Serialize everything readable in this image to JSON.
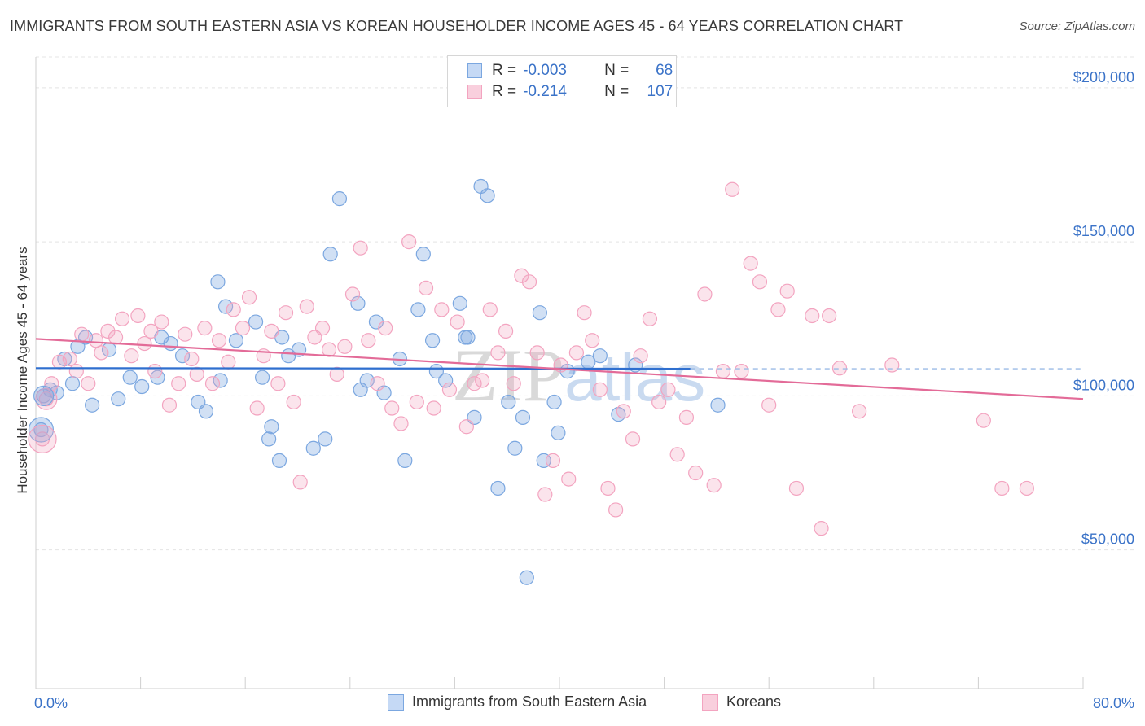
{
  "title": "IMMIGRANTS FROM SOUTH EASTERN ASIA VS KOREAN HOUSEHOLDER INCOME AGES 45 - 64 YEARS CORRELATION CHART",
  "source": "Source: ZipAtlas.com",
  "watermark": {
    "zip": "ZIP",
    "atlas": "atlas"
  },
  "legend": {
    "r_label": "R =",
    "n_label": "N =",
    "rows": [
      {
        "r": "-0.003",
        "n": "68"
      },
      {
        "r": "-0.214",
        "n": "107"
      }
    ]
  },
  "chart_data": {
    "type": "scatter",
    "title": "IMMIGRANTS FROM SOUTH EASTERN ASIA VS KOREAN HOUSEHOLDER INCOME AGES 45 - 64 YEARS CORRELATION CHART",
    "xlabel": "",
    "ylabel": "Householder Income Ages 45 - 64 years",
    "xlim": [
      0,
      80
    ],
    "ylim": [
      5000,
      210000
    ],
    "x_tick_labels": [
      "0.0%",
      "80.0%"
    ],
    "y_ticks": [
      50000,
      100000,
      150000,
      200000
    ],
    "y_tick_labels": [
      "$50,000",
      "$100,000",
      "$150,000",
      "$200,000"
    ],
    "grid": true,
    "legend_position": "top-center",
    "series": [
      {
        "name": "Immigrants from South Eastern Asia",
        "color": "#7ba7e0",
        "trend": {
          "x0": 0,
          "y0": 109000,
          "x1": 50,
          "y1": 108800
        },
        "points": [
          [
            0.6,
            100000
          ],
          [
            1.1,
            102000
          ],
          [
            1.6,
            101000
          ],
          [
            2.2,
            112000
          ],
          [
            3.2,
            116000
          ],
          [
            3.8,
            119000
          ],
          [
            2.8,
            104000
          ],
          [
            4.3,
            97000
          ],
          [
            5.6,
            115000
          ],
          [
            7.2,
            106000
          ],
          [
            8.1,
            103000
          ],
          [
            9.3,
            106000
          ],
          [
            10.3,
            117000
          ],
          [
            11.2,
            113000
          ],
          [
            12.4,
            98000
          ],
          [
            13.0,
            95000
          ],
          [
            13.9,
            137000
          ],
          [
            14.5,
            129000
          ],
          [
            15.3,
            118000
          ],
          [
            14.1,
            105000
          ],
          [
            16.8,
            124000
          ],
          [
            17.3,
            106000
          ],
          [
            17.8,
            86000
          ],
          [
            18.8,
            119000
          ],
          [
            19.3,
            113000
          ],
          [
            20.1,
            115000
          ],
          [
            18.6,
            79000
          ],
          [
            18.0,
            90000
          ],
          [
            21.2,
            83000
          ],
          [
            22.1,
            86000
          ],
          [
            22.5,
            146000
          ],
          [
            23.2,
            164000
          ],
          [
            24.6,
            130000
          ],
          [
            24.8,
            102000
          ],
          [
            25.3,
            105000
          ],
          [
            26.0,
            124000
          ],
          [
            26.6,
            101000
          ],
          [
            27.8,
            112000
          ],
          [
            28.2,
            79000
          ],
          [
            29.2,
            128000
          ],
          [
            29.6,
            146000
          ],
          [
            30.3,
            118000
          ],
          [
            30.6,
            108000
          ],
          [
            31.3,
            105000
          ],
          [
            32.4,
            130000
          ],
          [
            32.8,
            119000
          ],
          [
            33.0,
            119000
          ],
          [
            33.5,
            93000
          ],
          [
            34.0,
            168000
          ],
          [
            34.5,
            165000
          ],
          [
            35.3,
            70000
          ],
          [
            36.1,
            98000
          ],
          [
            36.6,
            83000
          ],
          [
            37.2,
            93000
          ],
          [
            37.5,
            41000
          ],
          [
            38.5,
            127000
          ],
          [
            38.8,
            79000
          ],
          [
            39.6,
            98000
          ],
          [
            39.9,
            88000
          ],
          [
            40.6,
            108000
          ],
          [
            42.2,
            111000
          ],
          [
            43.1,
            113000
          ],
          [
            44.5,
            94000
          ],
          [
            45.8,
            110000
          ],
          [
            52.1,
            97000
          ],
          [
            0.4,
            89000
          ],
          [
            6.3,
            99000
          ],
          [
            9.6,
            119000
          ]
        ]
      },
      {
        "name": "Koreans",
        "color": "#f3a4c0",
        "trend": {
          "x0": 0,
          "y0": 118500,
          "x1": 80,
          "y1": 99000
        },
        "points": [
          [
            0.5,
            86000
          ],
          [
            0.8,
            99000
          ],
          [
            1.2,
            104000
          ],
          [
            1.8,
            111000
          ],
          [
            2.6,
            112000
          ],
          [
            3.1,
            108000
          ],
          [
            3.5,
            120000
          ],
          [
            4.0,
            104000
          ],
          [
            4.6,
            118000
          ],
          [
            5.0,
            114000
          ],
          [
            5.5,
            121000
          ],
          [
            6.1,
            119000
          ],
          [
            6.6,
            125000
          ],
          [
            7.3,
            113000
          ],
          [
            7.8,
            126000
          ],
          [
            8.3,
            117000
          ],
          [
            8.8,
            121000
          ],
          [
            9.1,
            108000
          ],
          [
            9.6,
            124000
          ],
          [
            10.2,
            97000
          ],
          [
            10.9,
            104000
          ],
          [
            11.4,
            120000
          ],
          [
            11.9,
            112000
          ],
          [
            12.3,
            107000
          ],
          [
            12.9,
            122000
          ],
          [
            13.5,
            104000
          ],
          [
            14.0,
            118000
          ],
          [
            14.7,
            111000
          ],
          [
            15.1,
            128000
          ],
          [
            15.8,
            122000
          ],
          [
            16.3,
            132000
          ],
          [
            16.9,
            96000
          ],
          [
            17.4,
            113000
          ],
          [
            18.0,
            121000
          ],
          [
            18.5,
            104000
          ],
          [
            19.1,
            127000
          ],
          [
            19.7,
            98000
          ],
          [
            20.2,
            72000
          ],
          [
            20.7,
            129000
          ],
          [
            21.3,
            119000
          ],
          [
            21.9,
            122000
          ],
          [
            22.4,
            115000
          ],
          [
            23.0,
            107000
          ],
          [
            23.6,
            116000
          ],
          [
            24.2,
            133000
          ],
          [
            24.8,
            148000
          ],
          [
            25.4,
            118000
          ],
          [
            26.1,
            104000
          ],
          [
            26.7,
            122000
          ],
          [
            27.2,
            96000
          ],
          [
            27.9,
            91000
          ],
          [
            28.5,
            150000
          ],
          [
            29.1,
            98000
          ],
          [
            29.8,
            135000
          ],
          [
            30.4,
            96000
          ],
          [
            31.0,
            128000
          ],
          [
            31.6,
            102000
          ],
          [
            32.2,
            124000
          ],
          [
            32.9,
            90000
          ],
          [
            33.5,
            104000
          ],
          [
            34.1,
            105000
          ],
          [
            34.7,
            128000
          ],
          [
            35.3,
            114000
          ],
          [
            35.9,
            121000
          ],
          [
            36.5,
            104000
          ],
          [
            37.1,
            139000
          ],
          [
            37.7,
            137000
          ],
          [
            38.3,
            114000
          ],
          [
            38.9,
            68000
          ],
          [
            39.5,
            79000
          ],
          [
            40.1,
            110000
          ],
          [
            40.7,
            73000
          ],
          [
            41.3,
            114000
          ],
          [
            41.9,
            127000
          ],
          [
            42.5,
            118000
          ],
          [
            43.1,
            102000
          ],
          [
            43.7,
            70000
          ],
          [
            44.3,
            63000
          ],
          [
            44.9,
            95000
          ],
          [
            45.6,
            86000
          ],
          [
            46.2,
            113000
          ],
          [
            46.9,
            125000
          ],
          [
            47.6,
            98000
          ],
          [
            48.3,
            102000
          ],
          [
            49.0,
            81000
          ],
          [
            49.7,
            93000
          ],
          [
            50.4,
            75000
          ],
          [
            51.1,
            133000
          ],
          [
            51.8,
            71000
          ],
          [
            52.5,
            108000
          ],
          [
            53.2,
            167000
          ],
          [
            53.9,
            108000
          ],
          [
            54.6,
            143000
          ],
          [
            55.3,
            137000
          ],
          [
            56.0,
            97000
          ],
          [
            56.7,
            128000
          ],
          [
            57.4,
            134000
          ],
          [
            58.1,
            70000
          ],
          [
            59.3,
            126000
          ],
          [
            60.6,
            126000
          ],
          [
            61.4,
            109000
          ],
          [
            62.9,
            95000
          ],
          [
            65.4,
            110000
          ],
          [
            72.4,
            92000
          ],
          [
            73.8,
            70000
          ],
          [
            75.7,
            70000
          ],
          [
            60.0,
            57000
          ]
        ]
      }
    ]
  }
}
